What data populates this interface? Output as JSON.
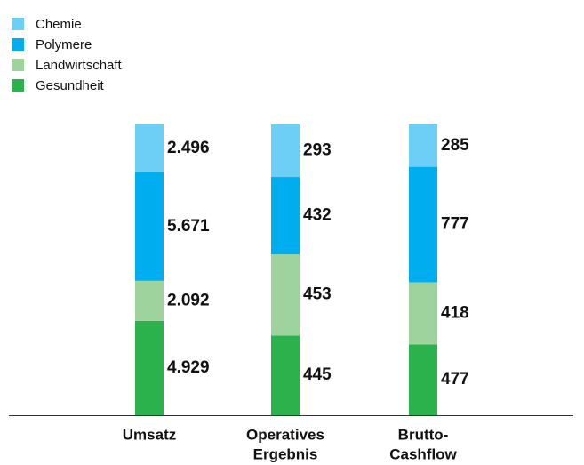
{
  "chart_data": {
    "type": "bar",
    "stacked": true,
    "normalized": true,
    "categories": [
      [
        "Umsatz"
      ],
      [
        "Operatives",
        "Ergebnis"
      ],
      [
        "Brutto-",
        "Cashflow"
      ]
    ],
    "series": [
      {
        "name": "Gesundheit",
        "color": "#2bb24c",
        "values": [
          4929,
          445,
          477
        ],
        "value_labels": [
          "4.929",
          "445",
          "477"
        ]
      },
      {
        "name": "Landwirtschaft",
        "color": "#9fd39d",
        "values": [
          2092,
          453,
          418
        ],
        "value_labels": [
          "2.092",
          "453",
          "418"
        ]
      },
      {
        "name": "Polymere",
        "color": "#00aeef",
        "values": [
          5671,
          432,
          777
        ],
        "value_labels": [
          "5.671",
          "432",
          "777"
        ]
      },
      {
        "name": "Chemie",
        "color": "#6dcff6",
        "values": [
          2496,
          293,
          285
        ],
        "value_labels": [
          "2.496",
          "293",
          "285"
        ]
      }
    ],
    "legend": "top-left"
  }
}
